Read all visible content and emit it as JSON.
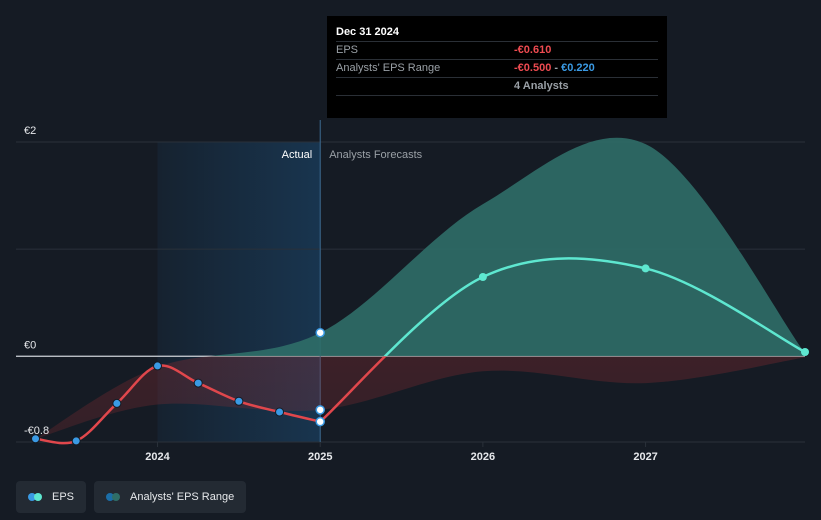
{
  "colors": {
    "eps_past": "#e0474c",
    "eps_forecast": "#5ee7d0",
    "actual_dot": "#3a9ae4",
    "range_forecast": "#2f6e68",
    "range_neg": "#8c2c31",
    "actual_band": "#1b4a72",
    "grid": "#2a313a",
    "axis": "#cfd3d8"
  },
  "tooltip": {
    "date": "Dec 31 2024",
    "eps_label": "EPS",
    "eps_value": "-€0.610",
    "range_label": "Analysts' EPS Range",
    "range_low": "-€0.500",
    "range_sep": " - ",
    "range_high": "€0.220",
    "analysts": "4 Analysts"
  },
  "labels": {
    "actual": "Actual",
    "forecast": "Analysts Forecasts"
  },
  "legend": {
    "eps": {
      "label": "EPS",
      "icon": "eps-dots-icon"
    },
    "range": {
      "label": "Analysts' EPS Range",
      "icon": "range-dots-icon"
    }
  },
  "chart_data": {
    "type": "line",
    "title": "",
    "xlabel": "",
    "ylabel": "",
    "y_ticks": [
      {
        "value": 2,
        "label": "€2"
      },
      {
        "value": 0,
        "label": "€0"
      },
      {
        "value": -0.8,
        "label": "-€0.8"
      }
    ],
    "x_ticks": [
      {
        "value": 2024.0,
        "label": "2024"
      },
      {
        "value": 2025.0,
        "label": "2025"
      },
      {
        "value": 2026.0,
        "label": "2026"
      },
      {
        "value": 2027.0,
        "label": "2027"
      }
    ],
    "xlim": [
      2023.13,
      2027.98
    ],
    "ylim": [
      -0.8,
      2.0
    ],
    "divider_x": 2025.0,
    "series": [
      {
        "name": "EPS",
        "kind": "actual",
        "points": [
          {
            "x": 2023.25,
            "y": -0.77
          },
          {
            "x": 2023.5,
            "y": -0.79
          },
          {
            "x": 2023.75,
            "y": -0.44
          },
          {
            "x": 2024.0,
            "y": -0.09
          },
          {
            "x": 2024.25,
            "y": -0.25
          },
          {
            "x": 2024.5,
            "y": -0.42
          },
          {
            "x": 2024.75,
            "y": -0.52
          },
          {
            "x": 2025.0,
            "y": -0.61
          }
        ]
      },
      {
        "name": "EPS",
        "kind": "forecast",
        "points": [
          {
            "x": 2025.0,
            "y": -0.61
          },
          {
            "x": 2026.0,
            "y": 0.74
          },
          {
            "x": 2027.0,
            "y": 0.82
          },
          {
            "x": 2027.98,
            "y": 0.04
          }
        ]
      }
    ],
    "range": {
      "name": "Analysts' EPS Range",
      "points": [
        {
          "x": 2023.25,
          "low": -0.77,
          "high": -0.77
        },
        {
          "x": 2024.0,
          "low": -0.45,
          "high": -0.1
        },
        {
          "x": 2025.0,
          "low": -0.5,
          "high": 0.22
        },
        {
          "x": 2026.0,
          "low": -0.14,
          "high": 1.42
        },
        {
          "x": 2027.0,
          "low": -0.25,
          "high": 1.98
        },
        {
          "x": 2027.98,
          "low": -0.01,
          "high": 0.03
        }
      ]
    },
    "grid": true,
    "legend": "bottom-left"
  }
}
